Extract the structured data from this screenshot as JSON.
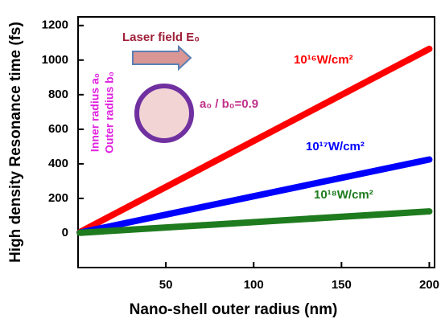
{
  "chart_data": {
    "type": "line",
    "x_label": "Nano-shell outer radius (nm)",
    "y_label": "High density Resonance time (fs)",
    "x": [
      1,
      200
    ],
    "series": [
      {
        "name": "10¹⁶W/cm²",
        "color": "#ff0000",
        "values": [
          5,
          1065
        ]
      },
      {
        "name": "10¹⁷W/cm²",
        "color": "#0000ff",
        "values": [
          2,
          425
        ]
      },
      {
        "name": "10¹⁸W/cm²",
        "color": "#1e7b1e",
        "values": [
          1,
          125
        ]
      }
    ],
    "xlim": [
      0,
      203
    ],
    "xticks": [
      50,
      100,
      150,
      200
    ],
    "ylim": [
      -200,
      1250
    ],
    "yticks": [
      0,
      200,
      400,
      600,
      800,
      1000,
      1200
    ],
    "annotations": {
      "laser": "Laser field E₀",
      "inner": "Inner radius a₀",
      "outer": "Outer radius b₀",
      "ratio": "a₀ / b₀=0.9"
    }
  }
}
